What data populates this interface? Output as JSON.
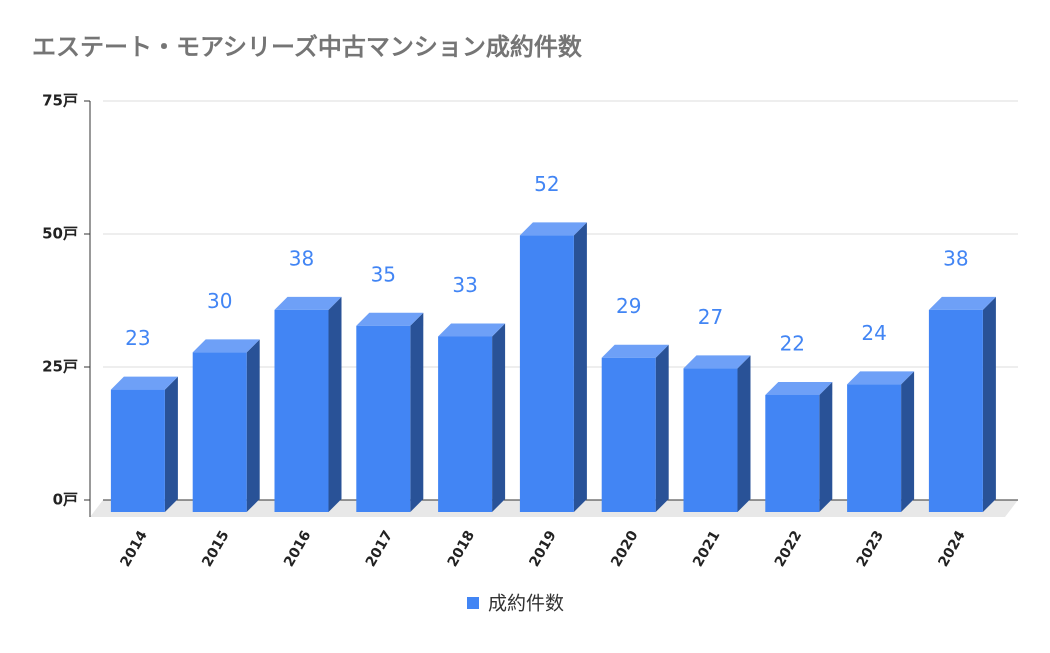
{
  "chart_data": {
    "type": "bar3d",
    "title": "エステート・モアシリーズ中古マンション成約件数",
    "categories": [
      "2014",
      "2015",
      "2016",
      "2017",
      "2018",
      "2019",
      "2020",
      "2021",
      "2022",
      "2023",
      "2024"
    ],
    "series": [
      {
        "name": "成約件数",
        "color": "#4285f4",
        "values": [
          23,
          30,
          38,
          35,
          33,
          52,
          29,
          27,
          22,
          24,
          38
        ]
      }
    ],
    "ylim": [
      0,
      75
    ],
    "yticks": [
      {
        "value": 0,
        "label": "0戸"
      },
      {
        "value": 25,
        "label": "25戸"
      },
      {
        "value": 50,
        "label": "50戸"
      },
      {
        "value": 75,
        "label": "75戸"
      }
    ],
    "grid": true,
    "legend": "bottom"
  }
}
